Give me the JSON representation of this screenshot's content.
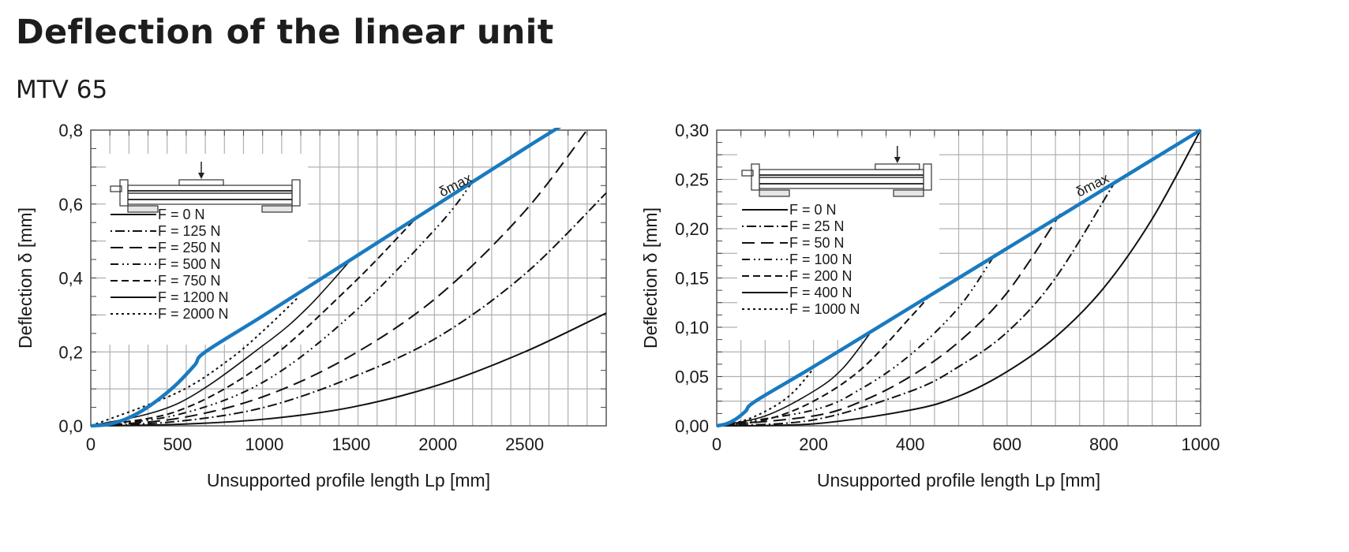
{
  "header": {
    "title": "Deflection of the linear unit",
    "subtitle": "MTV 65"
  },
  "colors": {
    "delta_max": "#1a7abf",
    "curves": "#111111",
    "grid": "#b0b0b0"
  },
  "chart_data": [
    {
      "type": "line",
      "title": "MTV 65 deflection (left)",
      "xlabel": "Unsupported profile length Lp [mm]",
      "ylabel": "Deflection δ [mm]",
      "xlim": [
        0,
        2970
      ],
      "ylim": [
        0,
        0.8
      ],
      "xticks": [
        0,
        500,
        1000,
        1500,
        2000,
        2500
      ],
      "xtick_labels": [
        "0",
        "500",
        "1000",
        "1500",
        "2000",
        "2500"
      ],
      "yticks": [
        0,
        0.2,
        0.4,
        0.6,
        0.8
      ],
      "ytick_labels": [
        "0,0",
        "0,2",
        "0,4",
        "0,6",
        "0,8"
      ],
      "grid": true,
      "legend_position": "upper-left",
      "annotation": "δmax",
      "series": [
        {
          "name": "δmax",
          "style": "thick-blue",
          "x": [
            0,
            100,
            200,
            300,
            400,
            500,
            600,
            660,
            1000,
            1500,
            2000,
            2500,
            2740
          ],
          "y": [
            0,
            0.004,
            0.018,
            0.042,
            0.075,
            0.115,
            0.165,
            0.2,
            0.3,
            0.45,
            0.6,
            0.75,
            0.82
          ]
        },
        {
          "name": "F = 0 N",
          "style": "solid",
          "x": [
            0,
            500,
            1000,
            1500,
            2000,
            2500,
            2970
          ],
          "y": [
            0,
            0.004,
            0.018,
            0.05,
            0.11,
            0.2,
            0.305
          ]
        },
        {
          "name": "F = 125 N",
          "style": "dash-dot-dot",
          "x": [
            0,
            500,
            1000,
            1500,
            2000,
            2500,
            2970
          ],
          "y": [
            0,
            0.012,
            0.05,
            0.13,
            0.24,
            0.41,
            0.63
          ]
        },
        {
          "name": "F = 250 N",
          "style": "long-dash",
          "x": [
            0,
            500,
            1000,
            1500,
            2000,
            2500,
            2890
          ],
          "y": [
            0,
            0.02,
            0.08,
            0.19,
            0.35,
            0.58,
            0.82
          ]
        },
        {
          "name": "F = 500 N",
          "style": "dash-dot-dot-2",
          "x": [
            0,
            500,
            1000,
            1500,
            2000,
            2200
          ],
          "y": [
            0,
            0.03,
            0.12,
            0.3,
            0.54,
            0.66
          ]
        },
        {
          "name": "F = 750 N",
          "style": "medium-dash",
          "x": [
            0,
            500,
            1000,
            1500,
            1870
          ],
          "y": [
            0,
            0.04,
            0.17,
            0.38,
            0.56
          ]
        },
        {
          "name": "F = 1200 N",
          "style": "thin-solid",
          "x": [
            0,
            500,
            1000,
            1250,
            1500
          ],
          "y": [
            0,
            0.06,
            0.22,
            0.32,
            0.45
          ]
        },
        {
          "name": "F = 2000 N",
          "style": "dotted",
          "x": [
            0,
            500,
            800,
            1000,
            1200
          ],
          "y": [
            0,
            0.09,
            0.18,
            0.26,
            0.35
          ]
        }
      ]
    },
    {
      "type": "line",
      "title": "MTV 65 deflection (right)",
      "xlabel": "Unsupported profile length Lp [mm]",
      "ylabel": "Deflection δ [mm]",
      "xlim": [
        0,
        1000
      ],
      "ylim": [
        0,
        0.3
      ],
      "xticks": [
        0,
        200,
        400,
        600,
        800,
        1000
      ],
      "xtick_labels": [
        "0",
        "200",
        "400",
        "600",
        "800",
        "1000"
      ],
      "yticks": [
        0,
        0.05,
        0.1,
        0.15,
        0.2,
        0.25,
        0.3
      ],
      "ytick_labels": [
        "0,00",
        "0,05",
        "0,10",
        "0,15",
        "0,20",
        "0,25",
        "0,30"
      ],
      "grid": true,
      "legend_position": "upper-left",
      "annotation": "δmax",
      "series": [
        {
          "name": "δmax",
          "style": "thick-blue",
          "x": [
            0,
            20,
            40,
            60,
            80,
            200,
            400,
            600,
            800,
            1000
          ],
          "y": [
            0,
            0.002,
            0.007,
            0.015,
            0.025,
            0.06,
            0.12,
            0.18,
            0.24,
            0.3
          ]
        },
        {
          "name": "F = 0 N",
          "style": "solid",
          "x": [
            0,
            200,
            400,
            500,
            600,
            700,
            800,
            900,
            1000
          ],
          "y": [
            0,
            0.002,
            0.016,
            0.03,
            0.055,
            0.09,
            0.14,
            0.21,
            0.3
          ]
        },
        {
          "name": "F = 25 N",
          "style": "dash-dot-dot",
          "x": [
            0,
            200,
            400,
            500,
            600,
            700,
            820
          ],
          "y": [
            0,
            0.006,
            0.035,
            0.06,
            0.095,
            0.15,
            0.245
          ]
        },
        {
          "name": "F = 50 N",
          "style": "long-dash",
          "x": [
            0,
            200,
            300,
            400,
            500,
            600,
            710
          ],
          "y": [
            0,
            0.01,
            0.025,
            0.05,
            0.085,
            0.135,
            0.215
          ]
        },
        {
          "name": "F = 100 N",
          "style": "dash-dot-dot-2",
          "x": [
            0,
            200,
            300,
            400,
            500,
            570
          ],
          "y": [
            0,
            0.016,
            0.038,
            0.072,
            0.12,
            0.17
          ]
        },
        {
          "name": "F = 200 N",
          "style": "medium-dash",
          "x": [
            0,
            100,
            200,
            300,
            400,
            440
          ],
          "y": [
            0,
            0.006,
            0.025,
            0.058,
            0.11,
            0.132
          ]
        },
        {
          "name": "F = 400 N",
          "style": "thin-solid",
          "x": [
            0,
            100,
            200,
            260,
            320
          ],
          "y": [
            0,
            0.01,
            0.035,
            0.058,
            0.096
          ]
        },
        {
          "name": "F = 1000 N",
          "style": "dotted",
          "x": [
            0,
            60,
            120,
            160,
            200
          ],
          "y": [
            0,
            0.006,
            0.02,
            0.035,
            0.058
          ]
        }
      ]
    }
  ]
}
